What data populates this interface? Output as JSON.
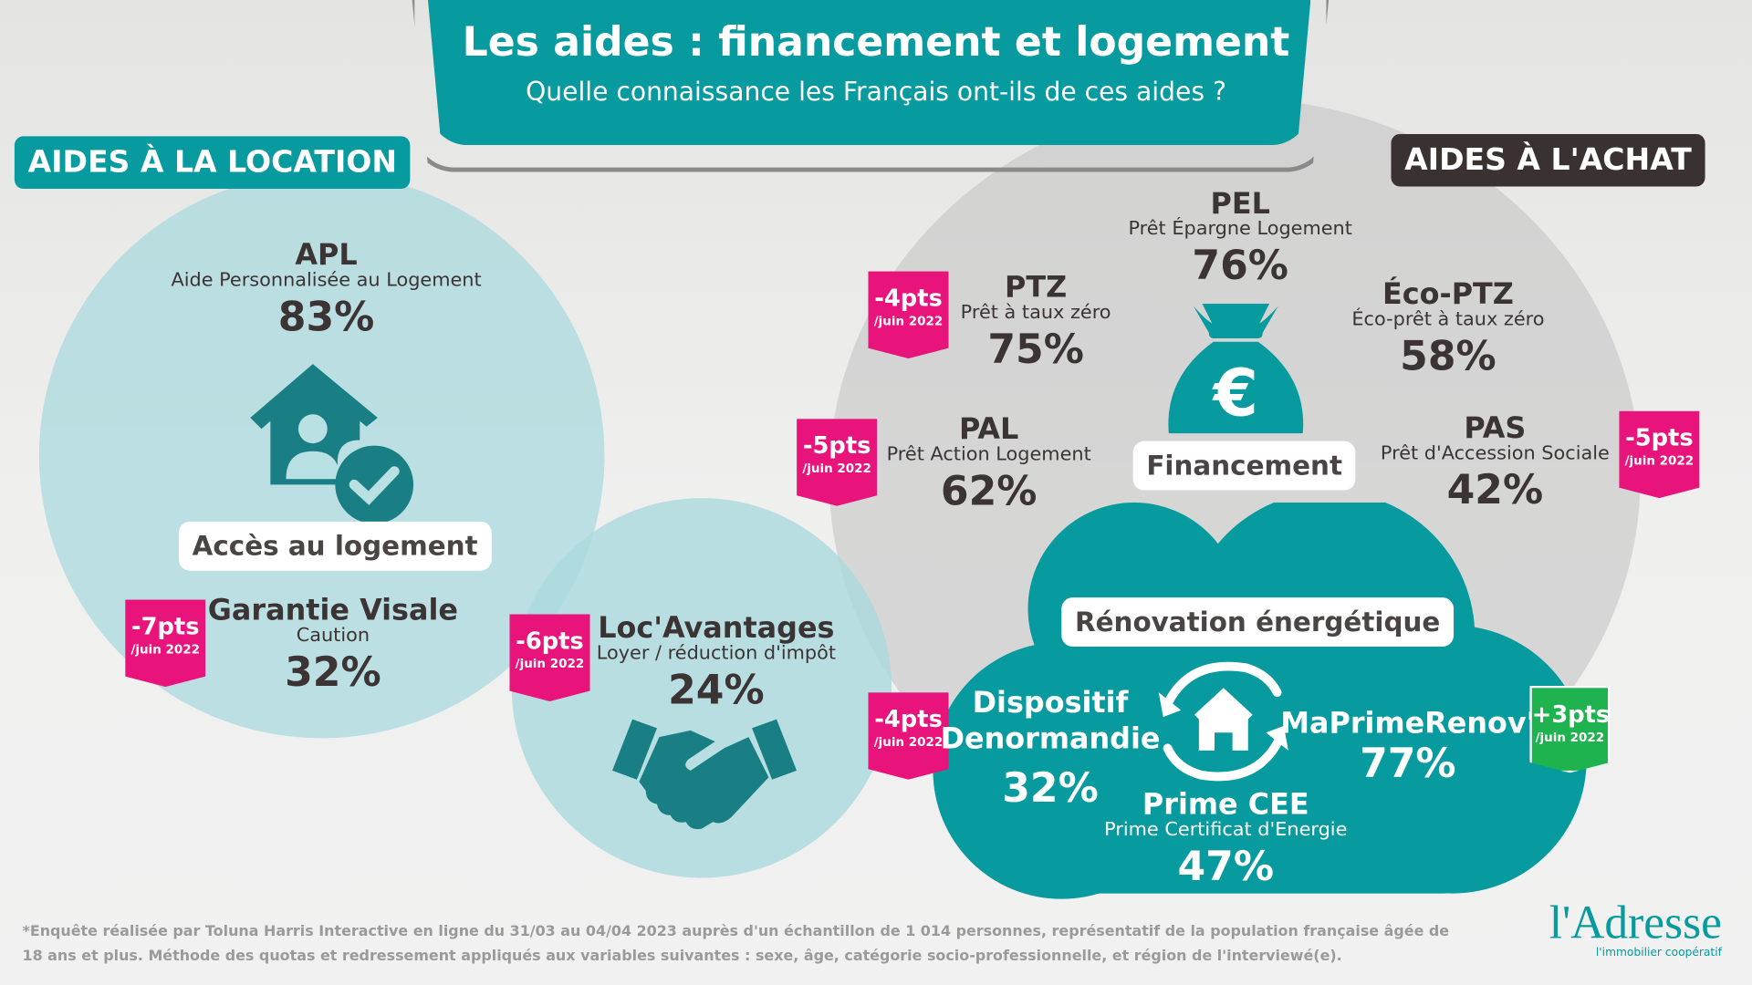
{
  "header": {
    "title": "Les aides : financement et logement",
    "subtitle": "Quelle connaissance les Français ont-ils de ces aides ?"
  },
  "colors": {
    "teal": "#079a9e",
    "dark": "#3a3131",
    "pink": "#e8137b",
    "green": "#1fb34f",
    "light_teal": "#b9e0e2"
  },
  "location": {
    "label": "AIDES À LA LOCATION",
    "category": "Accès au logement",
    "apl": {
      "name": "APL",
      "sub": "Aide Personnalisée au Logement",
      "pct": "83%"
    },
    "visale": {
      "name": "Garantie Visale",
      "sub": "Caution",
      "pct": "32%",
      "badge": "-7pts",
      "badge_sub": "/juin 2022"
    },
    "locavantages": {
      "name": "Loc'Avantages",
      "sub": "Loyer / réduction d'impôt",
      "pct": "24%",
      "badge": "-6pts",
      "badge_sub": "/juin 2022"
    }
  },
  "achat": {
    "label": "AIDES À L'ACHAT",
    "category": "Financement",
    "pel": {
      "name": "PEL",
      "sub": "Prêt Épargne Logement",
      "pct": "76%"
    },
    "ptz": {
      "name": "PTZ",
      "sub": "Prêt à taux zéro",
      "pct": "75%",
      "badge": "-4pts",
      "badge_sub": "/juin 2022"
    },
    "ecoptz": {
      "name": "Éco-PTZ",
      "sub": "Éco-prêt à taux zéro",
      "pct": "58%"
    },
    "pal": {
      "name": "PAL",
      "sub": "Prêt Action Logement",
      "pct": "62%",
      "badge": "-5pts",
      "badge_sub": "/juin 2022"
    },
    "pas": {
      "name": "PAS",
      "sub": "Prêt d'Accession Sociale",
      "pct": "42%",
      "badge": "-5pts",
      "badge_sub": "/juin 2022"
    }
  },
  "renovation": {
    "category": "Rénovation énergétique",
    "denormandie": {
      "name1": "Dispositif",
      "name2": "Denormandie",
      "pct": "32%",
      "badge": "-4pts",
      "badge_sub": "/juin 2022"
    },
    "maprime": {
      "name": "MaPrimeRenov'",
      "pct": "77%",
      "badge": "+3pts",
      "badge_sub": "/juin 2022"
    },
    "cee": {
      "name": "Prime CEE",
      "sub": "Prime Certificat d'Energie",
      "pct": "47%"
    }
  },
  "footnote": {
    "line1": "*Enquête réalisée par Toluna Harris Interactive en ligne du 31/03 au 04/04 2023 auprès d'un échantillon de 1 014 personnes, représentatif de la population française âgée de",
    "line2": "18 ans et plus. Méthode des quotas et redressement appliqués aux variables suivantes : sexe, âge, catégorie socio-professionnelle, et région de l'interviewé(e)."
  },
  "logo": {
    "name": "l'Adresse",
    "tagline": "l'immobilier coopératif"
  }
}
